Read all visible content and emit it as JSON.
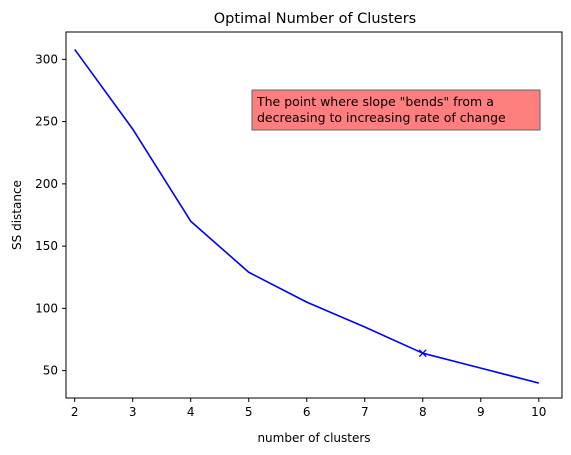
{
  "chart_data": {
    "type": "line",
    "title": "Optimal Number of Clusters",
    "xlabel": "number of clusters",
    "ylabel": "SS distance",
    "x": [
      2,
      3,
      4,
      5,
      6,
      7,
      8,
      9,
      10
    ],
    "series": [
      {
        "values": [
          308,
          244,
          170,
          129,
          105,
          85,
          64,
          52,
          40
        ],
        "color": "#0000ff"
      }
    ],
    "marker_point": {
      "x": 8,
      "y": 64,
      "symbol": "x"
    },
    "xlim": [
      1.85,
      10.4
    ],
    "ylim": [
      28,
      322
    ],
    "xticks": [
      2,
      3,
      4,
      5,
      6,
      7,
      8,
      9,
      10
    ],
    "yticks": [
      50,
      100,
      150,
      200,
      250,
      300
    ],
    "grid": false,
    "annotation": {
      "lines": [
        "The point where slope \"bends\" from a",
        "decreasing to increasing rate of change"
      ],
      "anchor_x": 5,
      "anchor_y": 250,
      "background": "#ff7f7f",
      "border": "#666666"
    }
  }
}
